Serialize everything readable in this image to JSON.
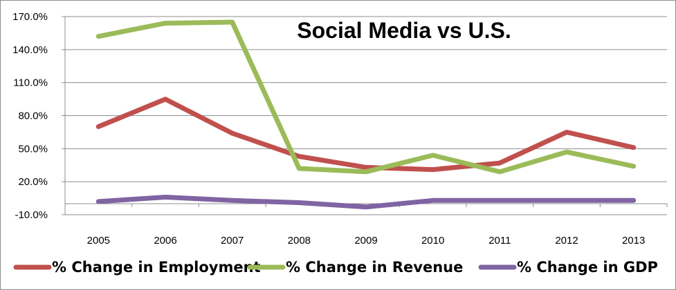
{
  "chart_data": {
    "type": "line",
    "title": "Social Media vs U.S.",
    "xlabel": "",
    "ylabel": "",
    "categories": [
      "2005",
      "2006",
      "2007",
      "2008",
      "2009",
      "2010",
      "2011",
      "2012",
      "2013"
    ],
    "ylim": [
      -10,
      170
    ],
    "yticks": [
      "-10.0%",
      "20.0%",
      "50.0%",
      "80.0%",
      "110.0%",
      "140.0%",
      "170.0%"
    ],
    "ytick_values": [
      -10,
      20,
      50,
      80,
      110,
      140,
      170
    ],
    "grid": {
      "horizontal": true,
      "vertical": false
    },
    "legend_position": "bottom",
    "series": [
      {
        "name": "% Change in Employment",
        "color": "#c0504d",
        "values": [
          70,
          95,
          64,
          43,
          33,
          31,
          37,
          65,
          51
        ]
      },
      {
        "name": "% Change in Revenue",
        "color": "#9bbb59",
        "values": [
          152,
          164,
          165,
          32,
          29,
          44,
          29,
          47,
          34
        ]
      },
      {
        "name": "% Change in GDP",
        "color": "#8064a2",
        "values": [
          2,
          6,
          3,
          1,
          -3,
          3,
          3,
          3,
          3
        ]
      }
    ]
  }
}
